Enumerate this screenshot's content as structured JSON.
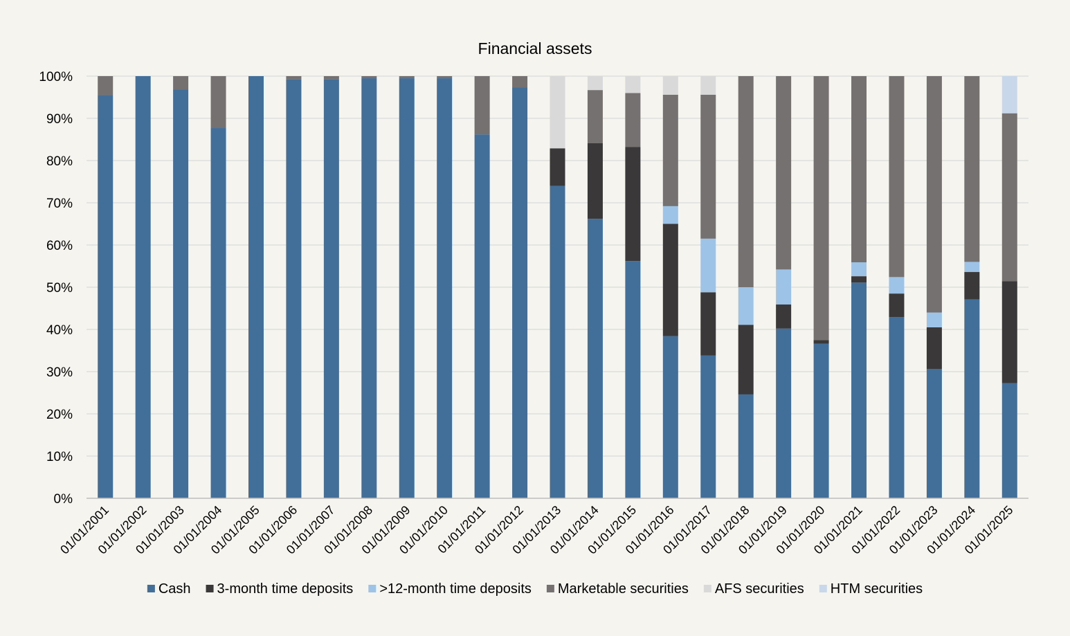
{
  "chart_data": {
    "type": "bar",
    "stacked": true,
    "title": "Financial assets",
    "xlabel": "",
    "ylabel": "",
    "ylim": [
      0,
      100
    ],
    "y_ticks": [
      "0%",
      "10%",
      "20%",
      "30%",
      "40%",
      "50%",
      "60%",
      "70%",
      "80%",
      "90%",
      "100%"
    ],
    "grid": true,
    "legend_position": "bottom",
    "categories": [
      "01/01/2001",
      "01/01/2002",
      "01/01/2003",
      "01/01/2004",
      "01/01/2005",
      "01/01/2006",
      "01/01/2007",
      "01/01/2008",
      "01/01/2009",
      "01/01/2010",
      "01/01/2011",
      "01/01/2012",
      "01/01/2013",
      "01/01/2014",
      "01/01/2015",
      "01/01/2016",
      "01/01/2017",
      "01/01/2018",
      "01/01/2019",
      "01/01/2020",
      "01/01/2021",
      "01/01/2022",
      "01/01/2023",
      "01/01/2024",
      "01/01/2025"
    ],
    "series": [
      {
        "name": "Cash",
        "color": "#426f9a",
        "values": [
          95.5,
          100,
          96.8,
          87.7,
          100,
          99.3,
          99.3,
          99.5,
          99.5,
          99.5,
          86.2,
          97.3,
          74.0,
          66.2,
          56.2,
          38.4,
          33.8,
          24.6,
          40.2,
          36.6,
          51.1,
          42.9,
          30.6,
          47.1,
          27.3
        ]
      },
      {
        "name": "3-month time deposits",
        "color": "#3a3838",
        "values": [
          0,
          0,
          0,
          0,
          0,
          0,
          0,
          0,
          0,
          0,
          0,
          0,
          8.9,
          17.9,
          27.0,
          26.6,
          15.0,
          16.5,
          5.7,
          0.9,
          1.5,
          5.6,
          9.9,
          6.5,
          24.1
        ]
      },
      {
        "name": ">12-month time deposits",
        "color": "#9dc3e6",
        "values": [
          0,
          0,
          0,
          0,
          0,
          0,
          0,
          0,
          0,
          0,
          0,
          0,
          0,
          0,
          0,
          4.2,
          12.7,
          8.9,
          8.3,
          0,
          3.3,
          3.9,
          3.5,
          2.4,
          0
        ]
      },
      {
        "name": "Marketable securities",
        "color": "#767171",
        "values": [
          4.5,
          0,
          3.2,
          12.3,
          0,
          0.7,
          0.7,
          0.5,
          0.5,
          0.5,
          13.8,
          2.7,
          0,
          12.6,
          12.8,
          26.4,
          34.1,
          50.0,
          45.8,
          62.5,
          44.1,
          47.6,
          56.0,
          44.0,
          39.8
        ]
      },
      {
        "name": "AFS securities",
        "color": "#d9d9d9",
        "values": [
          0,
          0,
          0,
          0,
          0,
          0,
          0,
          0,
          0,
          0,
          0,
          0,
          17.1,
          3.3,
          4.0,
          4.4,
          4.4,
          0,
          0,
          0,
          0,
          0,
          0,
          0,
          0
        ]
      },
      {
        "name": "HTM securities",
        "color": "#c9d7ea",
        "values": [
          0,
          0,
          0,
          0,
          0,
          0,
          0,
          0,
          0,
          0,
          0,
          0,
          0,
          0,
          0,
          0,
          0,
          0,
          0,
          0,
          0,
          0,
          0,
          0,
          8.8
        ]
      }
    ]
  }
}
